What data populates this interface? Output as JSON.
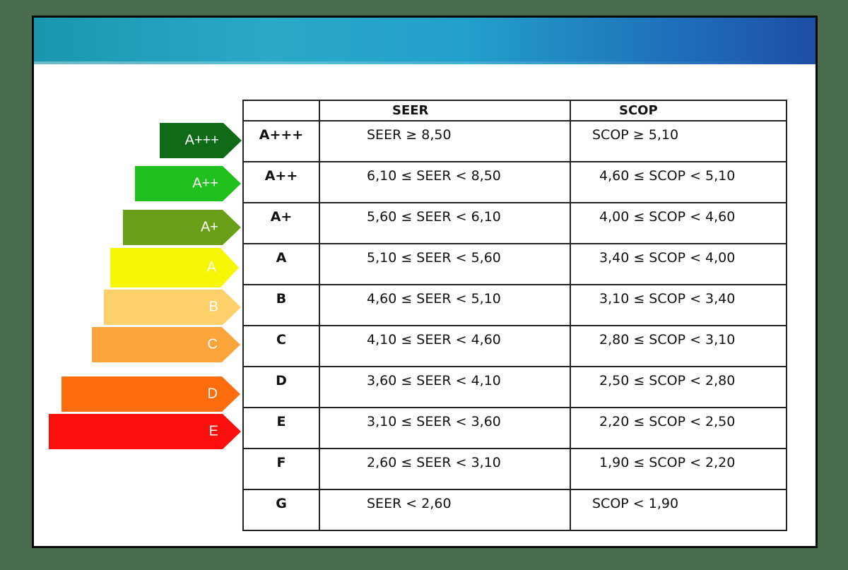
{
  "arrows": [
    {
      "label": "A+++",
      "color": "#0f6b17"
    },
    {
      "label": "A++",
      "color": "#20c11f"
    },
    {
      "label": "A+",
      "color": "#6aa017"
    },
    {
      "label": "A",
      "color": "#f7f705"
    },
    {
      "label": "B",
      "color": "#fdd06a"
    },
    {
      "label": "C",
      "color": "#fba43a"
    },
    {
      "label": "D",
      "color": "#fd6d0d"
    },
    {
      "label": "E",
      "color": "#fd0f0d"
    }
  ],
  "table": {
    "headers": [
      "",
      "SEER",
      "SCOP"
    ],
    "rows": [
      {
        "class": "A+++",
        "seer": "SEER ≥ 8,50",
        "scop": "SCOP ≥ 5,10"
      },
      {
        "class": "A++",
        "seer": "6,10 ≤ SEER < 8,50",
        "scop": "4,60 ≤ SCOP < 5,10"
      },
      {
        "class": "A+",
        "seer": "5,60 ≤ SEER < 6,10",
        "scop": "4,00 ≤ SCOP < 4,60"
      },
      {
        "class": "A",
        "seer": "5,10 ≤ SEER < 5,60",
        "scop": "3,40 ≤ SCOP < 4,00"
      },
      {
        "class": "B",
        "seer": "4,60 ≤ SEER < 5,10",
        "scop": "3,10 ≤ SCOP < 3,40"
      },
      {
        "class": "C",
        "seer": "4,10 ≤ SEER < 4,60",
        "scop": "2,80 ≤ SCOP < 3,10"
      },
      {
        "class": "D",
        "seer": "3,60 ≤ SEER < 4,10",
        "scop": "2,50 ≤ SCOP < 2,80"
      },
      {
        "class": "E",
        "seer": "3,10 ≤ SEER < 3,60",
        "scop": "2,20 ≤ SCOP < 2,50"
      },
      {
        "class": "F",
        "seer": "2,60 ≤ SEER < 3,10",
        "scop": "1,90 ≤ SCOP < 2,20"
      },
      {
        "class": "G",
        "seer": "SEER < 2,60",
        "scop": "SCOP < 1,90"
      }
    ]
  }
}
